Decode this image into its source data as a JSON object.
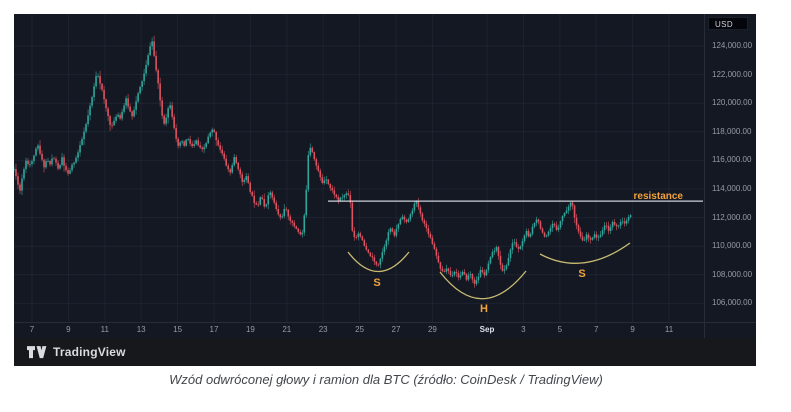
{
  "chart": {
    "panel_bg": "#141823",
    "toolbar_bg": "#17181b",
    "grid_color": "rgba(160,175,210,0.07)",
    "axis_separator_color": "#272c39",
    "up_color": "#32a69b",
    "down_color": "#dd5460",
    "currency_tag": "USD",
    "brand": "TradingView",
    "price_axis_labels": [
      "124,000.00",
      "122,000.00",
      "120,000.00",
      "118,000.00",
      "116,000.00",
      "114,000.00",
      "112,000.00",
      "110,000.00",
      "108,000.00",
      "106,000.00"
    ],
    "time_axis_labels": [
      "7",
      "9",
      "11",
      "13",
      "15",
      "17",
      "19",
      "21",
      "23",
      "25",
      "27",
      "29",
      "Sep",
      "3",
      "5",
      "7",
      "9",
      "11"
    ],
    "annotations": {
      "resistance_label": "resistance",
      "resistance_price": 113150,
      "resistance_line_color": "#d7dbe4",
      "label_color": "#f2a33c",
      "arc_color": "#d8ca78",
      "left_shoulder_label": "S",
      "head_label": "H",
      "right_shoulder_label": "S"
    },
    "chart_data": {
      "type": "candlestick",
      "symbol": "BTC/USD",
      "title": "BTC inverse head and shoulders",
      "x_unit": "days since Aug 7",
      "y_unit": "USD",
      "ylim": [
        105200,
        125600
      ],
      "grid": true,
      "price_ticks": [
        124000,
        122000,
        120000,
        118000,
        116000,
        114000,
        112000,
        110000,
        108000,
        106000
      ],
      "time_tick_days": [
        0,
        2,
        4,
        6,
        8,
        10,
        12,
        14,
        16,
        18,
        20,
        22,
        25,
        27,
        29,
        31,
        33,
        35
      ],
      "pattern": {
        "left_shoulder_low": 108700,
        "head_low": 107300,
        "right_shoulder_low": 110300,
        "neckline_resistance": 113150,
        "peak_high": 124400
      },
      "price_path": [
        [
          -0.99,
          115400
        ],
        [
          -0.82,
          114600
        ],
        [
          -0.66,
          113900
        ],
        [
          -0.49,
          115200
        ],
        [
          -0.33,
          116000
        ],
        [
          -0.16,
          115700
        ],
        [
          0,
          115900
        ],
        [
          0.16,
          116600
        ],
        [
          0.33,
          117000
        ],
        [
          0.49,
          116200
        ],
        [
          0.66,
          115600
        ],
        [
          0.82,
          116100
        ],
        [
          0.99,
          115700
        ],
        [
          1.15,
          116300
        ],
        [
          1.32,
          115800
        ],
        [
          1.48,
          115300
        ],
        [
          1.65,
          116200
        ],
        [
          1.81,
          115400
        ],
        [
          1.98,
          115000
        ],
        [
          2.14,
          115500
        ],
        [
          2.31,
          115900
        ],
        [
          2.47,
          116300
        ],
        [
          2.64,
          117000
        ],
        [
          2.8,
          117700
        ],
        [
          2.97,
          118500
        ],
        [
          3.13,
          119400
        ],
        [
          3.3,
          120400
        ],
        [
          3.46,
          121500
        ],
        [
          3.57,
          122300
        ],
        [
          3.68,
          121700
        ],
        [
          3.85,
          120900
        ],
        [
          4.01,
          119900
        ],
        [
          4.18,
          119100
        ],
        [
          4.34,
          118300
        ],
        [
          4.51,
          118700
        ],
        [
          4.67,
          119300
        ],
        [
          4.84,
          119000
        ],
        [
          5,
          119600
        ],
        [
          5.16,
          120300
        ],
        [
          5.33,
          119600
        ],
        [
          5.49,
          119100
        ],
        [
          5.66,
          119800
        ],
        [
          5.82,
          120600
        ],
        [
          5.99,
          121300
        ],
        [
          6.15,
          122000
        ],
        [
          6.32,
          122900
        ],
        [
          6.48,
          124000
        ],
        [
          6.59,
          124400
        ],
        [
          6.7,
          123400
        ],
        [
          6.81,
          122400
        ],
        [
          6.92,
          121400
        ],
        [
          7.03,
          120300
        ],
        [
          7.14,
          119200
        ],
        [
          7.25,
          118600
        ],
        [
          7.36,
          119000
        ],
        [
          7.47,
          119600
        ],
        [
          7.58,
          120000
        ],
        [
          7.69,
          119200
        ],
        [
          7.8,
          118400
        ],
        [
          7.91,
          117500
        ],
        [
          8.02,
          116900
        ],
        [
          8.19,
          117400
        ],
        [
          8.35,
          117000
        ],
        [
          8.52,
          117600
        ],
        [
          8.68,
          117200
        ],
        [
          8.85,
          116900
        ],
        [
          9.01,
          117400
        ],
        [
          9.18,
          116900
        ],
        [
          9.34,
          116700
        ],
        [
          9.51,
          117000
        ],
        [
          9.73,
          117800
        ],
        [
          9.95,
          118200
        ],
        [
          10.16,
          117300
        ],
        [
          10.44,
          116500
        ],
        [
          10.66,
          115700
        ],
        [
          10.88,
          115100
        ],
        [
          11.1,
          116200
        ],
        [
          11.32,
          115500
        ],
        [
          11.54,
          114500
        ],
        [
          11.76,
          114900
        ],
        [
          11.98,
          113900
        ],
        [
          12.2,
          113100
        ],
        [
          12.42,
          112900
        ],
        [
          12.58,
          113700
        ],
        [
          12.8,
          112500
        ],
        [
          13.02,
          113900
        ],
        [
          13.24,
          113300
        ],
        [
          13.46,
          112400
        ],
        [
          13.68,
          111900
        ],
        [
          13.9,
          112700
        ],
        [
          14.12,
          112000
        ],
        [
          14.34,
          111500
        ],
        [
          14.56,
          111200
        ],
        [
          14.73,
          110800
        ],
        [
          14.89,
          111000
        ],
        [
          15.05,
          113500
        ],
        [
          15.16,
          116300
        ],
        [
          15.27,
          117000
        ],
        [
          15.44,
          116500
        ],
        [
          15.6,
          115700
        ],
        [
          15.77,
          115100
        ],
        [
          15.93,
          114400
        ],
        [
          16.15,
          114800
        ],
        [
          16.37,
          114100
        ],
        [
          16.59,
          113700
        ],
        [
          16.81,
          113200
        ],
        [
          17.03,
          113400
        ],
        [
          17.25,
          113700
        ],
        [
          17.47,
          113500
        ],
        [
          17.58,
          111200
        ],
        [
          17.75,
          110500
        ],
        [
          17.97,
          111000
        ],
        [
          18.19,
          110200
        ],
        [
          18.41,
          109600
        ],
        [
          18.63,
          109300
        ],
        [
          18.85,
          108800
        ],
        [
          19.01,
          108700
        ],
        [
          19.18,
          109300
        ],
        [
          19.4,
          110200
        ],
        [
          19.67,
          111300
        ],
        [
          19.89,
          110700
        ],
        [
          20.11,
          111500
        ],
        [
          20.33,
          112200
        ],
        [
          20.55,
          111600
        ],
        [
          20.77,
          112100
        ],
        [
          20.99,
          112900
        ],
        [
          21.15,
          113100
        ],
        [
          21.32,
          112300
        ],
        [
          21.54,
          111600
        ],
        [
          21.76,
          111000
        ],
        [
          21.98,
          110300
        ],
        [
          22.2,
          109500
        ],
        [
          22.36,
          108700
        ],
        [
          22.58,
          108100
        ],
        [
          22.8,
          108500
        ],
        [
          23.02,
          107900
        ],
        [
          23.24,
          108300
        ],
        [
          23.46,
          107800
        ],
        [
          23.68,
          108200
        ],
        [
          23.85,
          107700
        ],
        [
          24.07,
          108100
        ],
        [
          24.29,
          107400
        ],
        [
          24.45,
          107600
        ],
        [
          24.67,
          108400
        ],
        [
          24.89,
          107900
        ],
        [
          25.11,
          108900
        ],
        [
          25.33,
          109600
        ],
        [
          25.55,
          109900
        ],
        [
          25.71,
          108900
        ],
        [
          25.88,
          108100
        ],
        [
          26.1,
          108800
        ],
        [
          26.32,
          109900
        ],
        [
          26.48,
          110400
        ],
        [
          26.7,
          109700
        ],
        [
          26.92,
          110200
        ],
        [
          27.14,
          111100
        ],
        [
          27.31,
          110500
        ],
        [
          27.53,
          111500
        ],
        [
          27.75,
          112000
        ],
        [
          27.97,
          111200
        ],
        [
          28.19,
          110500
        ],
        [
          28.41,
          111000
        ],
        [
          28.63,
          111600
        ],
        [
          28.85,
          111100
        ],
        [
          29.07,
          111900
        ],
        [
          29.29,
          112400
        ],
        [
          29.51,
          112800
        ],
        [
          29.67,
          113200
        ],
        [
          29.78,
          112200
        ],
        [
          29.95,
          111300
        ],
        [
          30.11,
          110700
        ],
        [
          30.27,
          110300
        ],
        [
          30.49,
          110800
        ],
        [
          30.66,
          110300
        ],
        [
          30.88,
          110900
        ],
        [
          31.1,
          110500
        ],
        [
          31.32,
          111100
        ],
        [
          31.54,
          111500
        ],
        [
          31.7,
          111100
        ],
        [
          31.92,
          111700
        ],
        [
          32.14,
          111300
        ],
        [
          32.36,
          111800
        ],
        [
          32.58,
          111500
        ],
        [
          32.75,
          112000
        ],
        [
          32.97,
          112200
        ]
      ]
    }
  },
  "caption": {
    "text": "Wzód odwróconej głowy i ramion dla BTC (źródło: CoinDesk / TradingView)"
  }
}
